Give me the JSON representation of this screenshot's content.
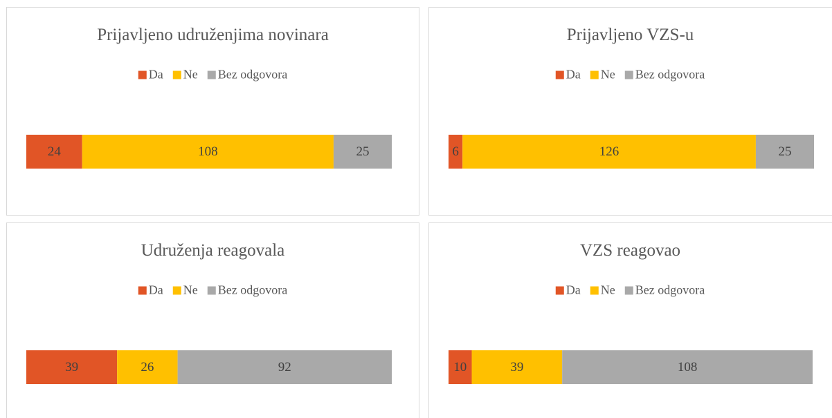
{
  "chart_data": [
    {
      "type": "bar",
      "title": "Prijavljeno udruženjima novinara",
      "categories": [
        null
      ],
      "xlim": [
        0,
        157
      ],
      "series": [
        {
          "name": "Da",
          "color": "#e15526",
          "values": [
            24
          ]
        },
        {
          "name": "Ne",
          "color": "#ffc000",
          "values": [
            108
          ]
        },
        {
          "name": "Bez odgovora",
          "color": "#a9a9a9",
          "values": [
            25
          ]
        }
      ]
    },
    {
      "type": "bar",
      "title": "Prijavljeno VZS-u",
      "categories": [
        null
      ],
      "xlim": [
        0,
        157
      ],
      "series": [
        {
          "name": "Da",
          "color": "#e15526",
          "values": [
            6
          ]
        },
        {
          "name": "Ne",
          "color": "#ffc000",
          "values": [
            126
          ]
        },
        {
          "name": "Bez odgovora",
          "color": "#a9a9a9",
          "values": [
            25
          ]
        }
      ]
    },
    {
      "type": "bar",
      "title": "Udruženja reagovala",
      "categories": [
        null
      ],
      "xlim": [
        0,
        157
      ],
      "series": [
        {
          "name": "Da",
          "color": "#e15526",
          "values": [
            39
          ]
        },
        {
          "name": "Ne",
          "color": "#ffc000",
          "values": [
            26
          ]
        },
        {
          "name": "Bez odgovora",
          "color": "#a9a9a9",
          "values": [
            92
          ]
        }
      ]
    },
    {
      "type": "bar",
      "title": "VZS reagovao",
      "categories": [
        null
      ],
      "xlim": [
        0,
        157
      ],
      "series": [
        {
          "name": "Da",
          "color": "#e15526",
          "values": [
            10
          ]
        },
        {
          "name": "Ne",
          "color": "#ffc000",
          "values": [
            39
          ]
        },
        {
          "name": "Bez odgovora",
          "color": "#a9a9a9",
          "values": [
            108
          ]
        }
      ]
    }
  ]
}
